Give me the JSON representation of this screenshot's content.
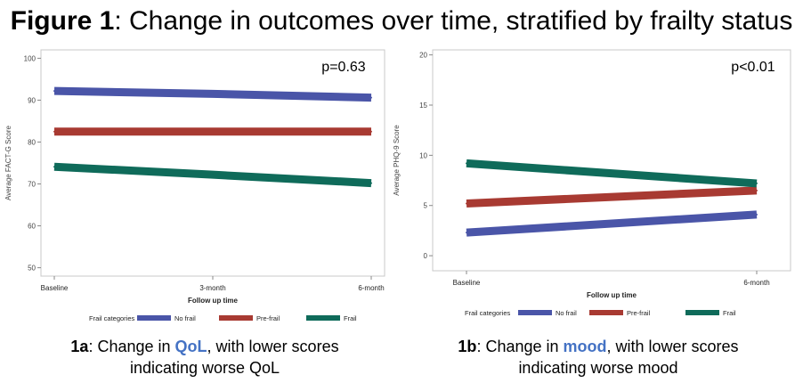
{
  "figure": {
    "title_bold": "Figure 1",
    "title_rest": ": Change in outcomes over time, stratified by frailty status"
  },
  "captions": [
    {
      "bold": "1a",
      "pre": ": Change in ",
      "highlight": "QoL",
      "post": ", with lower scores",
      "line2": "indicating worse QoL"
    },
    {
      "bold": "1b",
      "pre": ": Change in ",
      "highlight": "mood",
      "post": ", with lower scores",
      "line2": "indicating worse mood"
    }
  ],
  "colors": {
    "no_frail": "#4a55a8",
    "pre_frail": "#a83a32",
    "frail": "#0f6b5a",
    "highlight": "#4472c4"
  },
  "chart_data": [
    {
      "type": "line",
      "annotation": "p=0.63",
      "xlabel": "Follow up time",
      "ylabel": "Average FACT-G Score",
      "categories": [
        "Baseline",
        "3-month",
        "6-month"
      ],
      "ylim": [
        48,
        102
      ],
      "yticks": [
        50,
        60,
        70,
        80,
        90,
        100
      ],
      "legend_title": "Frail categories",
      "legend_position": "bottom",
      "series": [
        {
          "name": "No frail",
          "color": "#4a55a8",
          "values": [
            92.2,
            91.5,
            90.6
          ]
        },
        {
          "name": "Pre-frail",
          "color": "#a83a32",
          "values": [
            82.5,
            82.5,
            82.5
          ]
        },
        {
          "name": "Frail",
          "color": "#0f6b5a",
          "values": [
            74.1,
            72.2,
            70.2
          ]
        }
      ]
    },
    {
      "type": "line",
      "annotation": "p<0.01",
      "xlabel": "Follow up time",
      "ylabel": "Average PHQ-9 Score",
      "categories": [
        "Baseline",
        "6-month"
      ],
      "ylim": [
        -1.5,
        20.5
      ],
      "yticks": [
        0,
        5,
        10,
        15,
        20
      ],
      "legend_title": "Frail categories",
      "legend_position": "bottom",
      "series": [
        {
          "name": "No frail",
          "color": "#4a55a8",
          "values": [
            2.3,
            4.1
          ]
        },
        {
          "name": "Pre-frail",
          "color": "#a83a32",
          "values": [
            5.2,
            6.5
          ]
        },
        {
          "name": "Frail",
          "color": "#0f6b5a",
          "values": [
            9.2,
            7.2
          ]
        }
      ]
    }
  ]
}
